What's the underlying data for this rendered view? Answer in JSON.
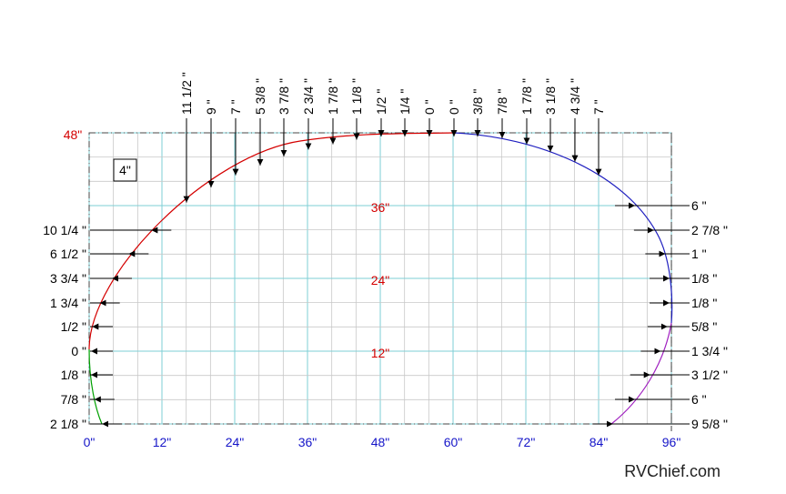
{
  "chart_data": {
    "type": "diagram",
    "grid_spacing_label": "4\"",
    "x_axis_labels": [
      "0\"",
      "12\"",
      "24\"",
      "36\"",
      "48\"",
      "60\"",
      "72\"",
      "84\"",
      "96\""
    ],
    "y_axis_labels": [
      "12\"",
      "24\"",
      "36\"",
      "48\""
    ],
    "top_offsets": [
      "11 1/2 \"",
      "9 \"",
      "7 \"",
      "5 3/8 \"",
      "3 7/8 \"",
      "2 3/4 \"",
      "1 7/8 \"",
      "1 1/8 \"",
      "1/2 \"",
      "1/4 \"",
      "0 \"",
      "0 \"",
      "3/8 \"",
      "7/8 \"",
      "1 7/8 \"",
      "3 1/8 \"",
      "4 3/4 \"",
      "7 \""
    ],
    "left_offsets": [
      "10 1/4 \"",
      "6 1/2 \"",
      "3 3/4 \"",
      "1 3/4 \"",
      "1/2 \"",
      "0 \"",
      "1/8 \"",
      "7/8 \"",
      "2 1/8 \""
    ],
    "right_offsets": [
      "6 \"",
      "2 7/8 \"",
      "1 \"",
      "1/8 \"",
      "1/8 \"",
      "5/8 \"",
      "1 3/4 \"",
      "3 1/2 \"",
      "6 \"",
      "9 5/8 \""
    ]
  },
  "credit": "RVChief.com",
  "colors": {
    "grid_major": "#7ecfd6",
    "grid_minor": "#c8c8c8",
    "curve_top_left": "#d40000",
    "curve_top_right": "#2020c0",
    "curve_bottom_left": "#00a000",
    "curve_bottom_right": "#a020c0",
    "x_labels": "#1515c8",
    "y_labels": "#d40000"
  }
}
